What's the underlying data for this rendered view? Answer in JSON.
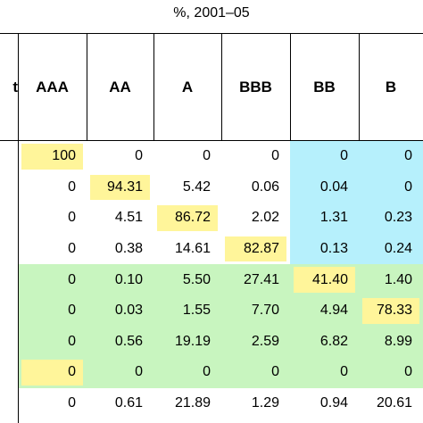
{
  "caption": "%, 2001–05",
  "colors": {
    "diagonal": "#fff59a",
    "speculative_band": "#b6f0fc",
    "default_band": "#c8f5bf"
  },
  "table": {
    "row_header_fragment": "t",
    "columns": [
      "AAA",
      "AA",
      "A",
      "BBB",
      "BB",
      "B"
    ],
    "rows": [
      [
        "100",
        "0",
        "0",
        "0",
        "0",
        "0"
      ],
      [
        "0",
        "94.31",
        "5.42",
        "0.06",
        "0.04",
        "0"
      ],
      [
        "0",
        "4.51",
        "86.72",
        "2.02",
        "1.31",
        "0.23"
      ],
      [
        "0",
        "0.38",
        "14.61",
        "82.87",
        "0.13",
        "0.24"
      ],
      [
        "0",
        "0.10",
        "5.50",
        "27.41",
        "41.40",
        "1.40"
      ],
      [
        "0",
        "0.03",
        "1.55",
        "7.70",
        "4.94",
        "78.33"
      ],
      [
        "0",
        "0.56",
        "19.19",
        "2.59",
        "6.82",
        "8.99"
      ],
      [
        "0",
        "0",
        "0",
        "0",
        "0",
        "0"
      ],
      [
        "0",
        "0.61",
        "21.89",
        "1.29",
        "0.94",
        "20.61"
      ]
    ],
    "highlight_cells": [
      [
        0,
        0
      ],
      [
        1,
        1
      ],
      [
        2,
        2
      ],
      [
        3,
        3
      ],
      [
        4,
        4
      ],
      [
        5,
        5
      ],
      [
        7,
        0
      ]
    ]
  }
}
